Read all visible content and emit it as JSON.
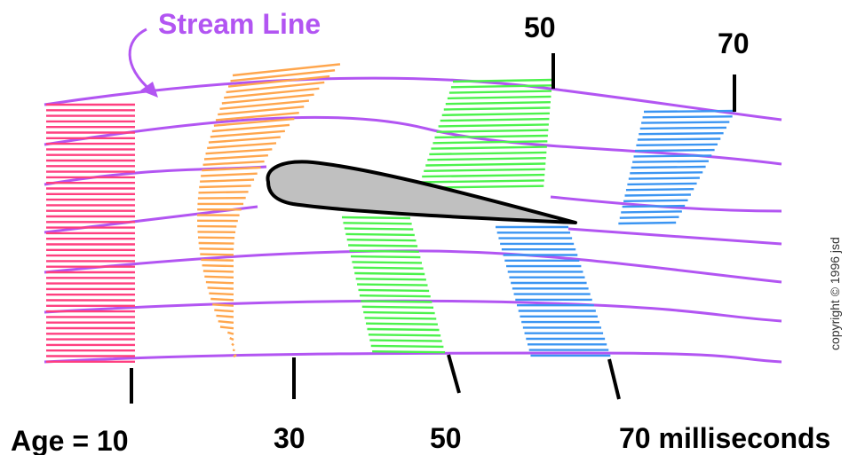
{
  "labels": {
    "stream_line": "Stream Line",
    "top_50": "50",
    "top_70": "70",
    "age_10": "Age = 10",
    "age_30": "30",
    "age_50": "50",
    "age_70": "70 milliseconds",
    "copyright": "copyright © 1996 jsd"
  },
  "colors": {
    "stream_line": "#b255f2",
    "age_10": "#ff3f7f",
    "age_30": "#ffa64d",
    "age_50": "#4cf24c",
    "age_70": "#3b95f2",
    "airfoil_fill": "#c0c0c0",
    "outline": "#000000"
  }
}
